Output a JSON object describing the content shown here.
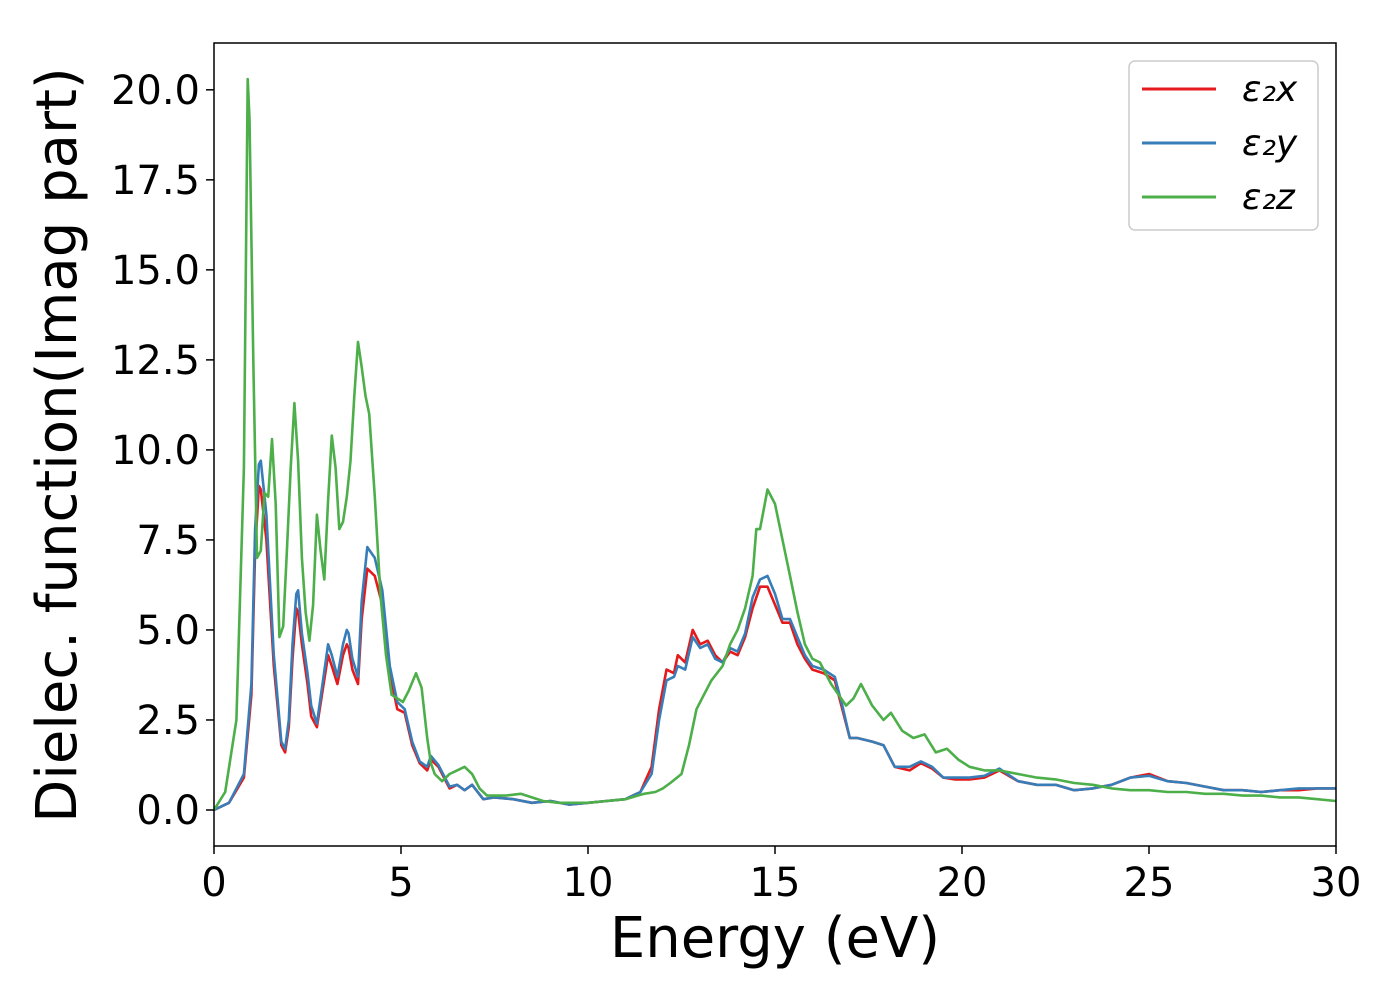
{
  "chart_data": {
    "type": "line",
    "title": "",
    "xlabel": "Energy (eV)",
    "ylabel": "Dielec. function(Imag part)",
    "xlim": [
      0,
      30
    ],
    "ylim": [
      -1.0,
      21.3
    ],
    "xticks": [
      0,
      5,
      10,
      15,
      20,
      25,
      30
    ],
    "xtick_labels": [
      "0",
      "5",
      "10",
      "15",
      "20",
      "25",
      "30"
    ],
    "yticks": [
      0.0,
      2.5,
      5.0,
      7.5,
      10.0,
      12.5,
      15.0,
      17.5,
      20.0
    ],
    "ytick_labels": [
      "0.0",
      "2.5",
      "5.0",
      "7.5",
      "10.0",
      "12.5",
      "15.0",
      "17.5",
      "20.0"
    ],
    "grid": false,
    "legend_position": "top-right",
    "series": [
      {
        "name": "ε₂x",
        "color": "#e41a1c",
        "x": [
          0,
          0.4,
          0.8,
          1.0,
          1.1,
          1.2,
          1.25,
          1.4,
          1.6,
          1.8,
          1.9,
          2.0,
          2.1,
          2.2,
          2.25,
          2.35,
          2.5,
          2.6,
          2.75,
          2.9,
          3.05,
          3.15,
          3.3,
          3.45,
          3.55,
          3.6,
          3.7,
          3.85,
          3.95,
          4.1,
          4.3,
          4.5,
          4.7,
          4.9,
          5.1,
          5.3,
          5.5,
          5.7,
          5.8,
          6.0,
          6.3,
          6.5,
          6.7,
          6.9,
          7.2,
          7.5,
          8.0,
          8.5,
          9.0,
          9.5,
          10.0,
          10.5,
          11.0,
          11.4,
          11.7,
          11.9,
          12.1,
          12.3,
          12.4,
          12.6,
          12.8,
          13.0,
          13.2,
          13.4,
          13.6,
          13.8,
          14.0,
          14.2,
          14.4,
          14.6,
          14.8,
          15.0,
          15.2,
          15.4,
          15.6,
          15.8,
          16.0,
          16.3,
          16.6,
          16.8,
          17.0,
          17.2,
          17.6,
          17.9,
          18.2,
          18.6,
          18.9,
          19.2,
          19.5,
          19.8,
          20.2,
          20.6,
          21.0,
          21.5,
          22.0,
          22.5,
          23.0,
          23.5,
          24.0,
          24.5,
          25.0,
          25.5,
          26.0,
          26.5,
          27.0,
          27.5,
          28.0,
          28.5,
          29.0,
          29.5,
          30.0
        ],
        "y": [
          0.0,
          0.2,
          0.9,
          3.2,
          7.2,
          9.0,
          8.9,
          7.5,
          4.0,
          1.8,
          1.6,
          2.3,
          4.2,
          5.6,
          5.5,
          4.6,
          3.5,
          2.6,
          2.3,
          3.3,
          4.3,
          4.0,
          3.5,
          4.3,
          4.6,
          4.5,
          3.9,
          3.5,
          5.3,
          6.7,
          6.5,
          5.7,
          3.8,
          2.8,
          2.7,
          1.8,
          1.3,
          1.1,
          1.4,
          1.2,
          0.6,
          0.7,
          0.55,
          0.7,
          0.3,
          0.35,
          0.3,
          0.2,
          0.25,
          0.15,
          0.2,
          0.25,
          0.3,
          0.5,
          1.2,
          2.8,
          3.9,
          3.8,
          4.3,
          4.1,
          5.0,
          4.6,
          4.7,
          4.3,
          4.1,
          4.4,
          4.3,
          4.8,
          5.6,
          6.2,
          6.2,
          5.7,
          5.2,
          5.2,
          4.6,
          4.2,
          3.9,
          3.8,
          3.6,
          2.8,
          2.0,
          2.0,
          1.9,
          1.8,
          1.2,
          1.1,
          1.3,
          1.15,
          0.9,
          0.85,
          0.85,
          0.9,
          1.1,
          0.8,
          0.7,
          0.7,
          0.55,
          0.6,
          0.7,
          0.9,
          1.0,
          0.8,
          0.75,
          0.65,
          0.55,
          0.55,
          0.5,
          0.55,
          0.55,
          0.6,
          0.6
        ]
      },
      {
        "name": "ε₂y",
        "color": "#377eb8",
        "x": [
          0,
          0.4,
          0.8,
          1.0,
          1.1,
          1.2,
          1.25,
          1.4,
          1.6,
          1.8,
          1.9,
          2.0,
          2.1,
          2.2,
          2.25,
          2.35,
          2.5,
          2.6,
          2.75,
          2.9,
          3.05,
          3.15,
          3.3,
          3.45,
          3.55,
          3.6,
          3.7,
          3.85,
          3.95,
          4.1,
          4.3,
          4.5,
          4.7,
          4.9,
          5.1,
          5.3,
          5.5,
          5.7,
          5.8,
          6.0,
          6.3,
          6.5,
          6.7,
          6.9,
          7.2,
          7.5,
          8.0,
          8.5,
          9.0,
          9.5,
          10.0,
          10.5,
          11.0,
          11.4,
          11.7,
          11.9,
          12.1,
          12.3,
          12.4,
          12.6,
          12.8,
          13.0,
          13.2,
          13.4,
          13.6,
          13.8,
          14.0,
          14.2,
          14.4,
          14.6,
          14.8,
          15.0,
          15.2,
          15.4,
          15.6,
          15.8,
          16.0,
          16.3,
          16.6,
          16.8,
          17.0,
          17.2,
          17.6,
          17.9,
          18.2,
          18.6,
          18.9,
          19.2,
          19.5,
          19.8,
          20.2,
          20.6,
          21.0,
          21.5,
          22.0,
          22.5,
          23.0,
          23.5,
          24.0,
          24.5,
          25.0,
          25.5,
          26.0,
          26.5,
          27.0,
          27.5,
          28.0,
          28.5,
          29.0,
          29.5,
          30.0
        ],
        "y": [
          0.0,
          0.2,
          1.0,
          3.5,
          7.8,
          9.6,
          9.7,
          8.2,
          4.3,
          1.9,
          1.7,
          2.5,
          4.6,
          6.0,
          6.1,
          4.9,
          3.8,
          2.9,
          2.4,
          3.5,
          4.6,
          4.3,
          3.7,
          4.6,
          5.0,
          4.9,
          4.2,
          3.7,
          5.8,
          7.3,
          7.0,
          6.1,
          4.0,
          3.0,
          2.8,
          1.9,
          1.35,
          1.2,
          1.5,
          1.25,
          0.65,
          0.7,
          0.55,
          0.7,
          0.3,
          0.35,
          0.3,
          0.2,
          0.25,
          0.15,
          0.2,
          0.25,
          0.3,
          0.5,
          1.0,
          2.5,
          3.6,
          3.7,
          4.0,
          3.9,
          4.8,
          4.5,
          4.6,
          4.2,
          4.1,
          4.5,
          4.4,
          4.9,
          5.9,
          6.4,
          6.5,
          6.0,
          5.3,
          5.3,
          4.8,
          4.3,
          4.0,
          3.9,
          3.7,
          2.9,
          2.0,
          2.0,
          1.9,
          1.8,
          1.2,
          1.2,
          1.35,
          1.2,
          0.9,
          0.9,
          0.9,
          0.95,
          1.15,
          0.8,
          0.7,
          0.7,
          0.55,
          0.6,
          0.7,
          0.9,
          0.95,
          0.8,
          0.75,
          0.65,
          0.55,
          0.55,
          0.5,
          0.55,
          0.6,
          0.6,
          0.6
        ]
      },
      {
        "name": "ε₂z",
        "color": "#4daf4a",
        "x": [
          0,
          0.3,
          0.6,
          0.8,
          0.9,
          0.95,
          1.05,
          1.15,
          1.25,
          1.35,
          1.45,
          1.55,
          1.65,
          1.75,
          1.85,
          1.95,
          2.05,
          2.15,
          2.25,
          2.35,
          2.45,
          2.55,
          2.65,
          2.75,
          2.85,
          2.95,
          3.05,
          3.15,
          3.25,
          3.35,
          3.45,
          3.55,
          3.65,
          3.75,
          3.85,
          3.95,
          4.05,
          4.15,
          4.3,
          4.45,
          4.6,
          4.75,
          4.9,
          5.05,
          5.2,
          5.4,
          5.55,
          5.7,
          5.8,
          5.9,
          6.1,
          6.3,
          6.5,
          6.7,
          6.9,
          7.1,
          7.3,
          7.5,
          7.8,
          8.2,
          8.5,
          8.8,
          9.2,
          9.6,
          10.0,
          10.5,
          11.0,
          11.5,
          11.8,
          12.0,
          12.2,
          12.5,
          12.7,
          12.9,
          13.1,
          13.3,
          13.6,
          13.8,
          14.0,
          14.2,
          14.4,
          14.5,
          14.6,
          14.8,
          15.0,
          15.2,
          15.4,
          15.6,
          15.8,
          16.0,
          16.2,
          16.5,
          16.7,
          16.9,
          17.1,
          17.3,
          17.6,
          17.9,
          18.1,
          18.4,
          18.7,
          19.0,
          19.3,
          19.6,
          19.9,
          20.2,
          20.6,
          21.0,
          21.5,
          22.0,
          22.5,
          23.0,
          23.5,
          24.0,
          24.5,
          25.0,
          25.5,
          26.0,
          26.5,
          27.0,
          27.5,
          28.0,
          28.5,
          29.0,
          29.5,
          30.0
        ],
        "y": [
          0.0,
          0.5,
          2.5,
          9.5,
          20.3,
          19.2,
          12.5,
          7.0,
          7.2,
          8.8,
          8.7,
          10.3,
          8.5,
          4.8,
          5.1,
          7.2,
          9.5,
          11.3,
          9.7,
          7.0,
          5.5,
          4.7,
          5.7,
          8.2,
          7.2,
          6.4,
          8.6,
          10.4,
          9.5,
          7.8,
          8.0,
          8.7,
          9.7,
          11.5,
          13.0,
          12.3,
          11.5,
          11.0,
          8.7,
          6.0,
          4.3,
          3.2,
          3.1,
          3.0,
          3.3,
          3.8,
          3.4,
          2.0,
          1.3,
          1.0,
          0.8,
          1.0,
          1.1,
          1.2,
          1.0,
          0.6,
          0.4,
          0.4,
          0.4,
          0.45,
          0.35,
          0.25,
          0.2,
          0.2,
          0.2,
          0.25,
          0.3,
          0.45,
          0.5,
          0.6,
          0.75,
          1.0,
          1.8,
          2.8,
          3.2,
          3.6,
          4.0,
          4.6,
          5.0,
          5.6,
          6.5,
          7.8,
          7.8,
          8.9,
          8.5,
          7.5,
          6.5,
          5.5,
          4.6,
          4.2,
          4.1,
          3.5,
          3.2,
          2.9,
          3.1,
          3.5,
          2.9,
          2.5,
          2.7,
          2.2,
          2.0,
          2.1,
          1.6,
          1.7,
          1.4,
          1.2,
          1.1,
          1.1,
          1.0,
          0.9,
          0.85,
          0.75,
          0.7,
          0.6,
          0.55,
          0.55,
          0.5,
          0.5,
          0.45,
          0.45,
          0.4,
          0.4,
          0.35,
          0.35,
          0.3,
          0.25
        ]
      }
    ]
  }
}
